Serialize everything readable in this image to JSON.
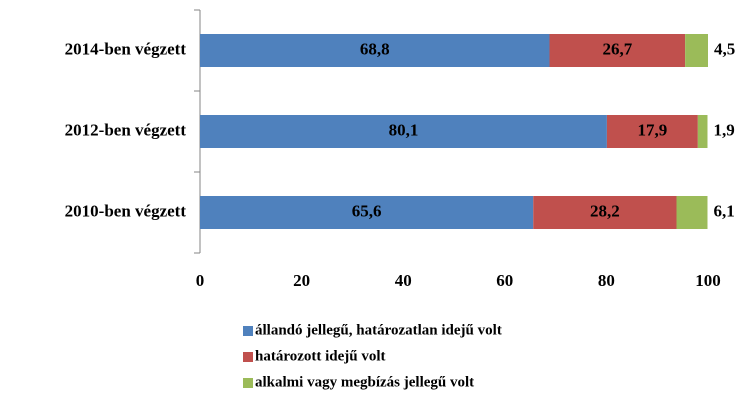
{
  "chart_data": {
    "type": "stacked-barh",
    "categories": [
      "2014-ben végzett",
      "2012-ben végzett",
      "2010-ben végzett"
    ],
    "series": [
      {
        "name": "állandó jellegű, határozatlan idejű volt",
        "color": "#4f81bd",
        "values": [
          68.8,
          80.1,
          65.6
        ],
        "value_labels": [
          "68,8",
          "80,1",
          "65,6"
        ]
      },
      {
        "name": "határozott idejű volt",
        "color": "#c0504d",
        "values": [
          26.7,
          17.9,
          28.2
        ],
        "value_labels": [
          "26,7",
          "17,9",
          "28,2"
        ]
      },
      {
        "name": "alkalmi vagy megbízás jellegű volt",
        "color": "#9bbb59",
        "values": [
          4.5,
          1.9,
          6.1
        ],
        "value_labels": [
          "4,5",
          "1,9",
          "6,1"
        ]
      }
    ],
    "xlim": [
      0,
      100
    ],
    "xticks": [
      0,
      20,
      40,
      60,
      80,
      100
    ],
    "grid": false,
    "legend": "bottom"
  }
}
